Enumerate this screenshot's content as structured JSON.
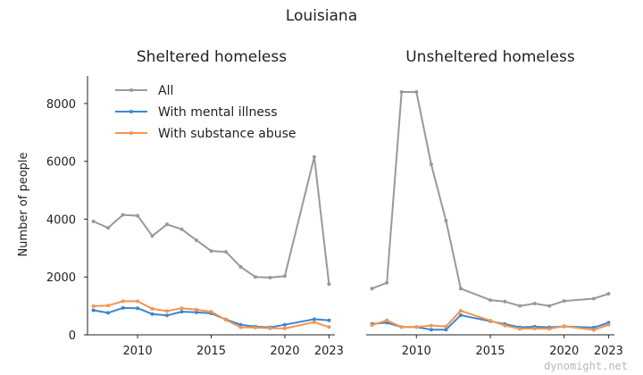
{
  "chart_data": {
    "type": "line",
    "title": "Louisiana",
    "ylabel": "Number of people",
    "watermark": "dynomight.net",
    "colors": {
      "All": "#999999",
      "With mental illness": "#3a86d4",
      "With substance abuse": "#f6944d"
    },
    "legend_placement": "top-left",
    "xlim": [
      2006.6,
      2023.4
    ],
    "ylim": [
      0,
      8800
    ],
    "yticks": [
      0,
      2000,
      4000,
      6000,
      8000
    ],
    "xticks": [
      2010,
      2015,
      2020,
      2023
    ],
    "panels": [
      {
        "title": "Sheltered homeless",
        "x": [
          2007,
          2008,
          2009,
          2010,
          2011,
          2012,
          2013,
          2014,
          2015,
          2016,
          2017,
          2018,
          2019,
          2020,
          2022,
          2023
        ],
        "series": [
          {
            "name": "All",
            "values": [
              3920,
              3700,
              4150,
              4120,
              3420,
              3820,
              3650,
              3270,
              2900,
              2870,
              2350,
              2000,
              1980,
              2030,
              6150,
              1750
            ]
          },
          {
            "name": "With mental illness",
            "values": [
              850,
              760,
              930,
              920,
              720,
              670,
              800,
              780,
              740,
              530,
              350,
              280,
              260,
              350,
              540,
              500
            ]
          },
          {
            "name": "With substance abuse",
            "values": [
              990,
              1010,
              1160,
              1160,
              900,
              820,
              920,
              870,
              800,
              520,
              260,
              250,
              230,
              220,
              440,
              270
            ]
          }
        ]
      },
      {
        "title": "Unsheltered homeless",
        "x": [
          2007,
          2008,
          2009,
          2010,
          2011,
          2012,
          2013,
          2015,
          2016,
          2017,
          2018,
          2019,
          2020,
          2022,
          2023
        ],
        "series": [
          {
            "name": "All",
            "values": [
              1600,
              1800,
              8400,
              8400,
              5900,
              3950,
              1600,
              1200,
              1150,
              1000,
              1080,
              1000,
              1170,
              1250,
              1420
            ]
          },
          {
            "name": "With mental illness",
            "values": [
              380,
              420,
              270,
              270,
              180,
              180,
              680,
              470,
              370,
              260,
              280,
              260,
              290,
              250,
              420
            ]
          },
          {
            "name": "With substance abuse",
            "values": [
              340,
              500,
              270,
              270,
              320,
              290,
              830,
              490,
              320,
              210,
              220,
              210,
              300,
              170,
              350
            ]
          }
        ]
      }
    ]
  }
}
